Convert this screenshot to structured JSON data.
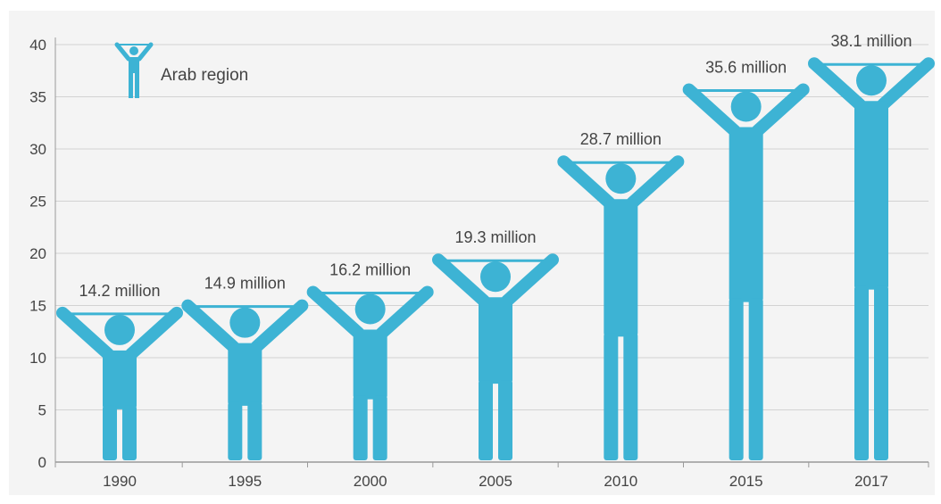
{
  "chart_data": {
    "type": "bar",
    "title": "",
    "xlabel": "",
    "ylabel": "",
    "categories": [
      "1990",
      "1995",
      "2000",
      "2005",
      "2010",
      "2015",
      "2017"
    ],
    "series": [
      {
        "name": "Arab region",
        "values": [
          14.2,
          14.9,
          16.2,
          19.3,
          28.7,
          35.6,
          38.1
        ],
        "labels": [
          "14.2 million",
          "14.9 million",
          "16.2 million",
          "19.3 million",
          "28.7 million",
          "35.6 million",
          "38.1 million"
        ]
      }
    ],
    "ylim": [
      0,
      40
    ],
    "yticks": [
      "0",
      "5",
      "10",
      "15",
      "20",
      "25",
      "30",
      "35",
      "40"
    ],
    "grid": true,
    "legend_position": "top-left",
    "mark_style": "person-icon",
    "colors": {
      "figure": "#3db3d4",
      "background": "#f4f4f4",
      "grid": "#d2d2d2",
      "text": "#444444"
    }
  }
}
